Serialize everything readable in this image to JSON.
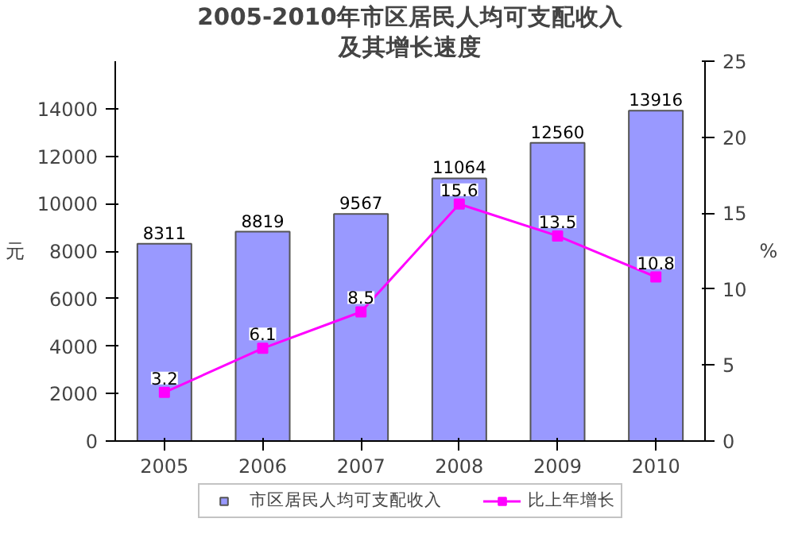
{
  "chart_data": {
    "type": "bar",
    "title": "2005-2010年市区居民人均可支配收入",
    "subtitle": "及其增长速度",
    "categories": [
      "2005",
      "2006",
      "2007",
      "2008",
      "2009",
      "2010"
    ],
    "ylabel": "元",
    "y2label": "%",
    "series": [
      {
        "name": "市区居民人均可支配收入",
        "type": "bar",
        "color": "#9999ff",
        "values": [
          8311,
          8819,
          9567,
          11064,
          12560,
          13916
        ]
      },
      {
        "name": "比上年增长",
        "type": "line",
        "axis": "y2",
        "color": "#ff00ff",
        "marker": "square",
        "values": [
          3.2,
          6.1,
          8.5,
          15.6,
          13.5,
          10.8
        ]
      }
    ],
    "ylim": [
      0,
      16000
    ],
    "yticks": [
      0,
      2000,
      4000,
      6000,
      8000,
      10000,
      12000,
      14000
    ],
    "y2lim": [
      0,
      25
    ],
    "y2ticks": [
      0,
      5,
      10,
      15,
      20,
      25
    ],
    "data_labels": true,
    "grid": false,
    "legend": "bottom"
  }
}
